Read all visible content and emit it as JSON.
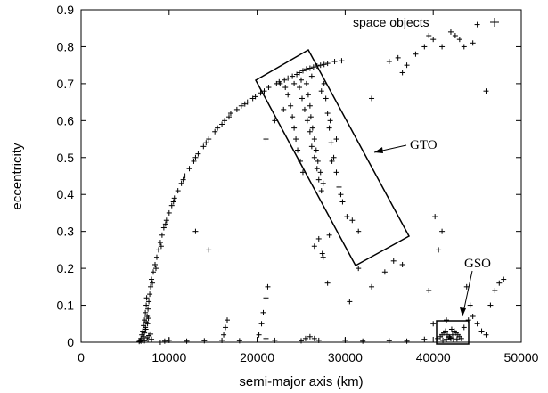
{
  "chart_data": {
    "type": "scatter",
    "xlabel": "semi-major axis (km)",
    "ylabel": "eccentricity",
    "xlim": [
      0,
      50000
    ],
    "ylim": [
      0,
      0.9
    ],
    "xticks": [
      0,
      10000,
      20000,
      30000,
      40000,
      50000
    ],
    "yticks": [
      0,
      0.1,
      0.2,
      0.3,
      0.4,
      0.5,
      0.6,
      0.7,
      0.8,
      0.9
    ],
    "grid": false,
    "legend": {
      "placement": "top-right",
      "entries": [
        {
          "label": "space objects",
          "marker": "+"
        }
      ]
    },
    "series": [
      {
        "name": "space objects",
        "marker": "+",
        "color": "#000000",
        "points": [
          [
            6600,
            0.002
          ],
          [
            6700,
            0.005
          ],
          [
            6800,
            0.01
          ],
          [
            6900,
            0.02
          ],
          [
            7000,
            0.03
          ],
          [
            7100,
            0.045
          ],
          [
            7200,
            0.06
          ],
          [
            7300,
            0.08
          ],
          [
            7400,
            0.1
          ],
          [
            7450,
            0.12
          ],
          [
            7000,
            0.005
          ],
          [
            7100,
            0.015
          ],
          [
            7200,
            0.025
          ],
          [
            7300,
            0.04
          ],
          [
            7400,
            0.055
          ],
          [
            7500,
            0.07
          ],
          [
            7600,
            0.09
          ],
          [
            7700,
            0.11
          ],
          [
            7800,
            0.13
          ],
          [
            7900,
            0.15
          ],
          [
            6800,
            0.003
          ],
          [
            7200,
            0.004
          ],
          [
            7600,
            0.006
          ],
          [
            8000,
            0.008
          ],
          [
            7500,
            0.012
          ],
          [
            7700,
            0.018
          ],
          [
            7900,
            0.022
          ],
          [
            7350,
            0.035
          ],
          [
            7550,
            0.05
          ],
          [
            7650,
            0.065
          ],
          [
            8000,
            0.17
          ],
          [
            8200,
            0.19
          ],
          [
            8400,
            0.21
          ],
          [
            8600,
            0.23
          ],
          [
            8800,
            0.25
          ],
          [
            9000,
            0.27
          ],
          [
            9200,
            0.29
          ],
          [
            9400,
            0.31
          ],
          [
            9700,
            0.33
          ],
          [
            10000,
            0.35
          ],
          [
            10300,
            0.37
          ],
          [
            10600,
            0.39
          ],
          [
            11000,
            0.41
          ],
          [
            11400,
            0.43
          ],
          [
            11800,
            0.45
          ],
          [
            12300,
            0.47
          ],
          [
            12800,
            0.49
          ],
          [
            13300,
            0.51
          ],
          [
            13900,
            0.53
          ],
          [
            14500,
            0.55
          ],
          [
            15200,
            0.57
          ],
          [
            16000,
            0.59
          ],
          [
            16800,
            0.61
          ],
          [
            17700,
            0.63
          ],
          [
            18600,
            0.645
          ],
          [
            19500,
            0.66
          ],
          [
            20400,
            0.675
          ],
          [
            21300,
            0.69
          ],
          [
            22200,
            0.7
          ],
          [
            23100,
            0.71
          ],
          [
            24000,
            0.72
          ],
          [
            24800,
            0.73
          ],
          [
            25600,
            0.74
          ],
          [
            26400,
            0.745
          ],
          [
            27200,
            0.75
          ],
          [
            28000,
            0.755
          ],
          [
            28800,
            0.76
          ],
          [
            29600,
            0.762
          ],
          [
            8100,
            0.16
          ],
          [
            8500,
            0.2
          ],
          [
            9100,
            0.26
          ],
          [
            9600,
            0.32
          ],
          [
            10500,
            0.38
          ],
          [
            11600,
            0.44
          ],
          [
            13000,
            0.5
          ],
          [
            14200,
            0.54
          ],
          [
            15500,
            0.58
          ],
          [
            17000,
            0.62
          ],
          [
            18200,
            0.64
          ],
          [
            19800,
            0.665
          ],
          [
            20800,
            0.68
          ],
          [
            22500,
            0.705
          ],
          [
            23500,
            0.715
          ],
          [
            24500,
            0.725
          ],
          [
            25200,
            0.735
          ],
          [
            26000,
            0.742
          ],
          [
            26800,
            0.748
          ],
          [
            27600,
            0.752
          ],
          [
            16300,
            0.6
          ],
          [
            18900,
            0.65
          ],
          [
            22600,
            0.7
          ],
          [
            23200,
            0.69
          ],
          [
            23500,
            0.67
          ],
          [
            23800,
            0.64
          ],
          [
            24000,
            0.61
          ],
          [
            24200,
            0.58
          ],
          [
            24400,
            0.55
          ],
          [
            24600,
            0.52
          ],
          [
            24900,
            0.49
          ],
          [
            25200,
            0.46
          ],
          [
            25600,
            0.7
          ],
          [
            25800,
            0.67
          ],
          [
            26000,
            0.64
          ],
          [
            26100,
            0.61
          ],
          [
            26300,
            0.58
          ],
          [
            26500,
            0.55
          ],
          [
            26700,
            0.52
          ],
          [
            26900,
            0.49
          ],
          [
            27200,
            0.46
          ],
          [
            27500,
            0.43
          ],
          [
            27600,
            0.7
          ],
          [
            27800,
            0.66
          ],
          [
            28000,
            0.62
          ],
          [
            28200,
            0.58
          ],
          [
            28400,
            0.54
          ],
          [
            28700,
            0.5
          ],
          [
            29000,
            0.46
          ],
          [
            29300,
            0.42
          ],
          [
            29700,
            0.38
          ],
          [
            30200,
            0.34
          ],
          [
            24800,
            0.69
          ],
          [
            25100,
            0.66
          ],
          [
            25400,
            0.63
          ],
          [
            25700,
            0.6
          ],
          [
            26000,
            0.57
          ],
          [
            26200,
            0.53
          ],
          [
            26500,
            0.5
          ],
          [
            26800,
            0.47
          ],
          [
            27000,
            0.44
          ],
          [
            27300,
            0.41
          ],
          [
            28500,
            0.49
          ],
          [
            29500,
            0.4
          ],
          [
            30800,
            0.33
          ],
          [
            31500,
            0.3
          ],
          [
            29000,
            0.55
          ],
          [
            28300,
            0.6
          ],
          [
            27300,
            0.68
          ],
          [
            26200,
            0.72
          ],
          [
            25000,
            0.71
          ],
          [
            24200,
            0.7
          ],
          [
            9000,
            0.0
          ],
          [
            9500,
            0.003
          ],
          [
            10000,
            0.005
          ],
          [
            12000,
            0.003
          ],
          [
            14000,
            0.004
          ],
          [
            16000,
            0.005
          ],
          [
            18000,
            0.004
          ],
          [
            20000,
            0.006
          ],
          [
            21000,
            0.01
          ],
          [
            22000,
            0.005
          ],
          [
            25000,
            0.004
          ],
          [
            25500,
            0.01
          ],
          [
            26000,
            0.015
          ],
          [
            26500,
            0.01
          ],
          [
            27000,
            0.005
          ],
          [
            30000,
            0.005
          ],
          [
            32000,
            0.003
          ],
          [
            35000,
            0.004
          ],
          [
            37000,
            0.003
          ],
          [
            39000,
            0.008
          ],
          [
            20200,
            0.02
          ],
          [
            20500,
            0.05
          ],
          [
            20700,
            0.08
          ],
          [
            21000,
            0.12
          ],
          [
            21200,
            0.15
          ],
          [
            16200,
            0.02
          ],
          [
            16400,
            0.04
          ],
          [
            16600,
            0.06
          ],
          [
            14500,
            0.25
          ],
          [
            13000,
            0.3
          ],
          [
            40500,
            0.01
          ],
          [
            40800,
            0.015
          ],
          [
            41000,
            0.02
          ],
          [
            41200,
            0.025
          ],
          [
            41400,
            0.03
          ],
          [
            41600,
            0.02
          ],
          [
            41800,
            0.015
          ],
          [
            42000,
            0.01
          ],
          [
            42200,
            0.02
          ],
          [
            42400,
            0.03
          ],
          [
            42600,
            0.025
          ],
          [
            42800,
            0.02
          ],
          [
            43000,
            0.015
          ],
          [
            43200,
            0.01
          ],
          [
            41100,
            0.005
          ],
          [
            41500,
            0.008
          ],
          [
            41900,
            0.012
          ],
          [
            42300,
            0.006
          ],
          [
            42700,
            0.009
          ],
          [
            42100,
            0.035
          ],
          [
            40000,
            0.05
          ],
          [
            41500,
            0.06
          ],
          [
            43500,
            0.04
          ],
          [
            44000,
            0.06
          ],
          [
            44500,
            0.07
          ],
          [
            45000,
            0.05
          ],
          [
            45500,
            0.03
          ],
          [
            46000,
            0.02
          ],
          [
            44200,
            0.1
          ],
          [
            43800,
            0.15
          ],
          [
            40200,
            0.34
          ],
          [
            40600,
            0.25
          ],
          [
            41000,
            0.3
          ],
          [
            39500,
            0.14
          ],
          [
            36500,
            0.21
          ],
          [
            35500,
            0.22
          ],
          [
            34500,
            0.19
          ],
          [
            33000,
            0.15
          ],
          [
            31500,
            0.2
          ],
          [
            30500,
            0.11
          ],
          [
            27000,
            0.28
          ],
          [
            27400,
            0.24
          ],
          [
            28200,
            0.29
          ],
          [
            33000,
            0.66
          ],
          [
            35000,
            0.76
          ],
          [
            36000,
            0.77
          ],
          [
            39000,
            0.8
          ],
          [
            39500,
            0.83
          ],
          [
            40000,
            0.82
          ],
          [
            41000,
            0.8
          ],
          [
            42000,
            0.84
          ],
          [
            42500,
            0.83
          ],
          [
            43000,
            0.82
          ],
          [
            44500,
            0.81
          ],
          [
            45000,
            0.86
          ],
          [
            43500,
            0.8
          ],
          [
            38000,
            0.78
          ],
          [
            37000,
            0.75
          ],
          [
            36500,
            0.73
          ],
          [
            46000,
            0.68
          ],
          [
            47500,
            0.16
          ],
          [
            48000,
            0.17
          ],
          [
            46500,
            0.1
          ],
          [
            47000,
            0.14
          ],
          [
            21000,
            0.55
          ],
          [
            22000,
            0.6
          ],
          [
            23000,
            0.63
          ],
          [
            27500,
            0.23
          ],
          [
            26500,
            0.26
          ],
          [
            28000,
            0.16
          ]
        ]
      }
    ],
    "annotations": [
      {
        "text": "GTO",
        "box": {
          "label": "GTO"
        }
      },
      {
        "text": "GSO",
        "box": {
          "label": "GSO"
        }
      }
    ]
  }
}
